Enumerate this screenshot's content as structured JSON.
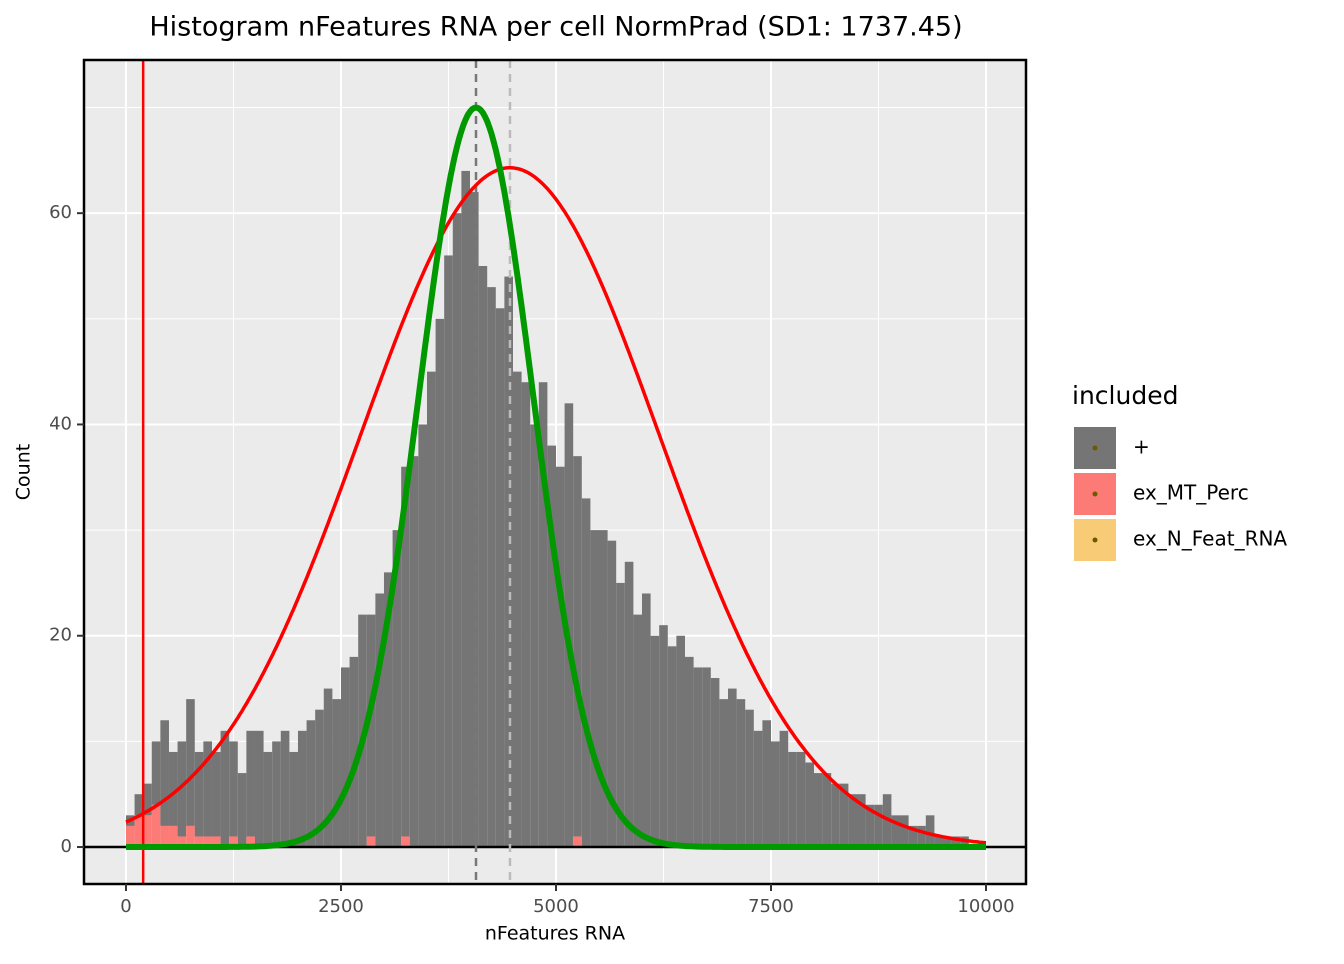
{
  "chart_data": {
    "type": "histogram",
    "title": "Histogram nFeatures RNA per cell NormPrad (SD1: 1737.45)",
    "x_label": "nFeatures RNA",
    "y_label": "Count",
    "bins": [
      0,
      100,
      200,
      300,
      400,
      500,
      600,
      700,
      800,
      900,
      1000,
      1100,
      1200,
      1300,
      1400,
      1500,
      1600,
      1700,
      1800,
      1900,
      2000,
      2100,
      2200,
      2300,
      2400,
      2500,
      2600,
      2700,
      2800,
      2900,
      3000,
      3100,
      3200,
      3300,
      3400,
      3500,
      3600,
      3700,
      3800,
      3900,
      4000,
      4100,
      4200,
      4300,
      4400,
      4500,
      4600,
      4700,
      4800,
      4900,
      5000,
      5100,
      5200,
      5300,
      5400,
      5500,
      5600,
      5700,
      5800,
      5900,
      6000,
      6100,
      6200,
      6300,
      6400,
      6500,
      6600,
      6700,
      6800,
      6900,
      7000,
      7100,
      7200,
      7300,
      7400,
      7500,
      7600,
      7700,
      7800,
      7900,
      8000,
      8100,
      8200,
      8300,
      8400,
      8500,
      8600,
      8700,
      8800,
      8900,
      9000,
      9100,
      9200,
      9300,
      9400,
      9500,
      9600,
      9700,
      9800,
      9900,
      10000
    ],
    "series": [
      {
        "name": "ex_N_Feat_RNA",
        "color": "#f8cb77",
        "values": [
          0,
          0,
          0,
          0,
          0,
          0,
          0,
          0,
          0,
          0,
          0,
          0,
          0,
          0,
          0,
          0,
          0,
          0,
          0,
          0,
          0,
          0,
          0,
          0,
          0,
          0,
          0,
          0,
          0,
          0,
          0,
          0,
          0,
          0,
          0,
          0,
          0,
          0,
          0,
          0,
          0,
          0,
          0,
          0,
          0,
          0,
          0,
          0,
          0,
          0,
          0,
          0,
          0,
          0,
          0,
          0,
          0,
          0,
          0,
          0,
          0,
          0,
          0,
          0,
          0,
          0,
          0,
          0,
          0,
          0,
          0,
          0,
          0,
          0,
          0,
          0,
          0,
          0,
          0,
          0,
          0,
          0,
          0,
          0,
          0,
          0,
          0,
          0,
          0,
          0,
          0,
          0,
          0,
          0,
          0,
          0,
          0,
          0,
          0,
          0
        ]
      },
      {
        "name": "ex_MT_Perc",
        "color": "#fc7b77",
        "values": [
          2,
          3,
          3,
          4,
          2,
          2,
          1,
          2,
          1,
          1,
          1,
          0,
          1,
          0,
          1,
          0,
          0,
          0,
          0,
          0,
          0,
          0,
          0,
          0,
          0,
          0,
          0,
          0,
          1,
          0,
          0,
          0,
          1,
          0,
          0,
          0,
          0,
          0,
          0,
          0,
          0,
          0,
          0,
          0,
          0,
          0,
          0,
          0,
          0,
          0,
          0,
          0,
          1,
          0,
          0,
          0,
          0,
          0,
          0,
          0,
          0,
          0,
          0,
          0,
          0,
          0,
          0,
          0,
          0,
          0,
          0,
          0,
          0,
          0,
          0,
          0,
          0,
          0,
          0,
          0,
          0,
          0,
          0,
          0,
          0,
          0,
          0,
          0,
          0,
          0,
          0,
          0,
          0,
          0,
          0,
          0,
          0,
          0,
          0,
          0
        ]
      },
      {
        "name": "+",
        "color": "#757575",
        "values": [
          1,
          2,
          3,
          6,
          10,
          7,
          9,
          12,
          8,
          9,
          8,
          11,
          9,
          7,
          10,
          11,
          9,
          10,
          11,
          9,
          11,
          12,
          13,
          15,
          14,
          17,
          18,
          22,
          21,
          24,
          26,
          30,
          35,
          37,
          40,
          45,
          50,
          56,
          60,
          64,
          62,
          55,
          53,
          51,
          54,
          45,
          44,
          40,
          44,
          38,
          36,
          42,
          36,
          33,
          30,
          30,
          29,
          25,
          27,
          22,
          24,
          20,
          21,
          19,
          20,
          18,
          17,
          17,
          16,
          14,
          15,
          14,
          13,
          11,
          12,
          10,
          11,
          9,
          9,
          8,
          7,
          7,
          6,
          6,
          5,
          5,
          4,
          4,
          5,
          3,
          3,
          2,
          2,
          3,
          1,
          1,
          1,
          1,
          0,
          0
        ]
      }
    ],
    "curves": [
      {
        "color": "#ff0000",
        "mean": 4465,
        "sd": 1737.45,
        "peak": 64.3
      },
      {
        "color": "#009900",
        "mean": 4070,
        "sd": 670,
        "peak": 70
      }
    ],
    "vlines": [
      {
        "value": 200,
        "color": "#ff0000",
        "dashed": false
      },
      {
        "value": 4070,
        "color": "#777777",
        "dashed": true
      },
      {
        "value": 4465,
        "color": "#bbbbbb",
        "dashed": true
      }
    ],
    "hline": 0,
    "xlim": [
      -488,
      10465
    ],
    "ylim": [
      -3.5,
      74.5
    ],
    "xticks": [
      0,
      2500,
      5000,
      7500,
      10000
    ],
    "yticks": [
      0,
      20,
      40,
      60
    ],
    "xminor": [
      1250,
      3750,
      6250,
      8750
    ],
    "yminor": [
      10,
      30,
      50,
      70
    ],
    "grid": true,
    "legend_title": "included",
    "legend_position": "right"
  }
}
